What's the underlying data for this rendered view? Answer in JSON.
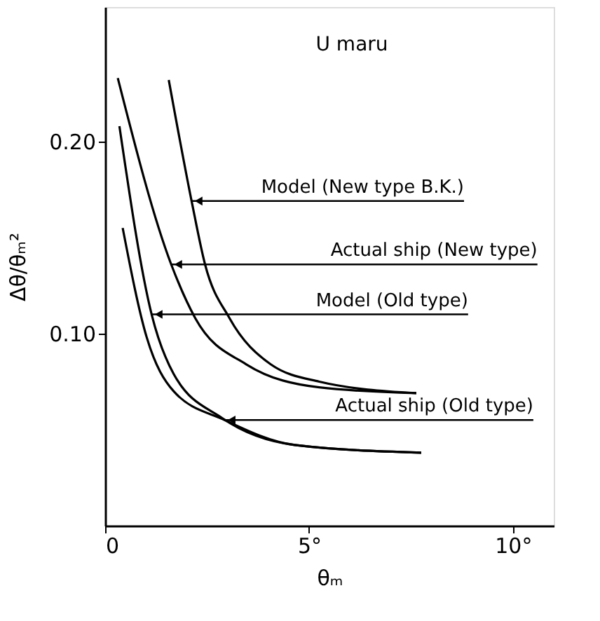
{
  "chart_data": {
    "type": "line",
    "title": "U  maru",
    "xlabel": "θₘ",
    "ylabel": "Δθ/θₘ²",
    "xlim": [
      0,
      11
    ],
    "ylim": [
      0,
      0.27
    ],
    "xticks": [
      0,
      {
        "value": 5,
        "label": "5°"
      },
      {
        "value": 10,
        "label": "10°"
      }
    ],
    "yticks": [
      {
        "value": 0.1,
        "label": "0.10"
      },
      {
        "value": 0.2,
        "label": "0.20"
      }
    ],
    "grid": false,
    "legend": false,
    "marker": "none",
    "line_style": "solid",
    "series": [
      {
        "name": "Model (New type B.K.)",
        "color": "#000000",
        "x": [
          1.56,
          2.12,
          2.45,
          3.05,
          4.06,
          5.25,
          7.63
        ],
        "values": [
          0.232,
          0.169,
          0.136,
          0.108,
          0.084,
          0.075,
          0.069
        ]
      },
      {
        "name": "Actual ship (New type)",
        "color": "#000000",
        "x": [
          0.31,
          1.62,
          2.21,
          3.46,
          5.25,
          7.63
        ],
        "values": [
          0.233,
          0.136,
          0.108,
          0.084,
          0.072,
          0.069
        ]
      },
      {
        "name": "Model (Old type)",
        "color": "#000000",
        "x": [
          0.35,
          1.14,
          1.68,
          2.87,
          4.65,
          7.75
        ],
        "values": [
          0.208,
          0.11,
          0.079,
          0.056,
          0.042,
          0.038
        ]
      },
      {
        "name": "Actual ship (Old type)",
        "color": "#000000",
        "x": [
          0.43,
          1.02,
          1.68,
          2.93,
          4.65,
          7.75
        ],
        "values": [
          0.155,
          0.098,
          0.07,
          0.055,
          0.042,
          0.038
        ]
      }
    ]
  }
}
